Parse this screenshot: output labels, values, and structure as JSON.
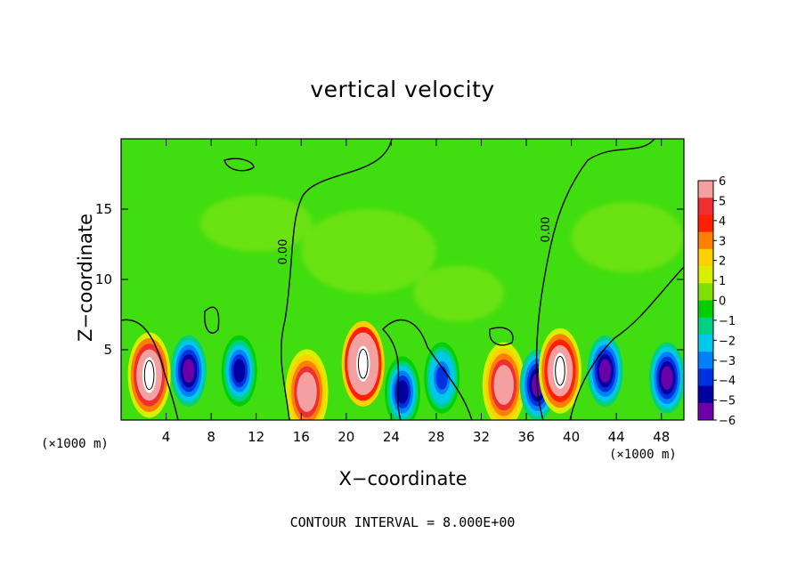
{
  "chart_data": {
    "type": "heatmap",
    "title": "vertical velocity",
    "xlabel": "X−coordinate",
    "ylabel": "Z−coordinate",
    "x_unit_label_left": "(×1000 m)",
    "x_unit_label_right": "(×1000 m)",
    "footer": "CONTOUR INTERVAL = 8.000E+00",
    "xlim": [
      0,
      50
    ],
    "ylim": [
      0,
      20
    ],
    "x_ticks": [
      4,
      8,
      12,
      16,
      20,
      24,
      28,
      32,
      36,
      40,
      44,
      48
    ],
    "y_ticks": [
      5,
      10,
      15
    ],
    "colorbar": {
      "min": -6,
      "max": 6,
      "tick_labels": [
        "6",
        "5",
        "4",
        "3",
        "2",
        "1",
        "0",
        "−1",
        "−2",
        "−3",
        "−4",
        "−5",
        "−6"
      ],
      "colors": [
        "#f4a0a0",
        "#f03030",
        "#ff2000",
        "#ff8000",
        "#ffd000",
        "#d8f000",
        "#80e000",
        "#00d000",
        "#00d080",
        "#00c8e8",
        "#0080ff",
        "#0030e0",
        "#0000a0",
        "#6a00a8"
      ]
    },
    "contour_label": "0.00",
    "features": [
      {
        "x": 2.5,
        "z": 3.2,
        "w": 11,
        "type": "updraft",
        "core": "white"
      },
      {
        "x": 6.0,
        "z": 3.5,
        "w": -6,
        "type": "downdraft"
      },
      {
        "x": 10.5,
        "z": 3.5,
        "w": -5,
        "type": "downdraft"
      },
      {
        "x": 16.5,
        "z": 2.0,
        "w": 7,
        "type": "updraft"
      },
      {
        "x": 21.5,
        "z": 4.0,
        "w": 12,
        "type": "updraft",
        "core": "white"
      },
      {
        "x": 25.0,
        "z": 2.0,
        "w": -5,
        "type": "downdraft"
      },
      {
        "x": 28.5,
        "z": 3.0,
        "w": -4,
        "type": "downdraft"
      },
      {
        "x": 34.0,
        "z": 2.5,
        "w": 7,
        "type": "updraft"
      },
      {
        "x": 37.0,
        "z": 2.5,
        "w": -6,
        "type": "downdraft"
      },
      {
        "x": 39.0,
        "z": 3.5,
        "w": 9,
        "type": "updraft",
        "core": "white"
      },
      {
        "x": 43.0,
        "z": 3.5,
        "w": -6,
        "type": "downdraft"
      },
      {
        "x": 48.5,
        "z": 3.0,
        "w": -6,
        "type": "downdraft"
      }
    ]
  }
}
